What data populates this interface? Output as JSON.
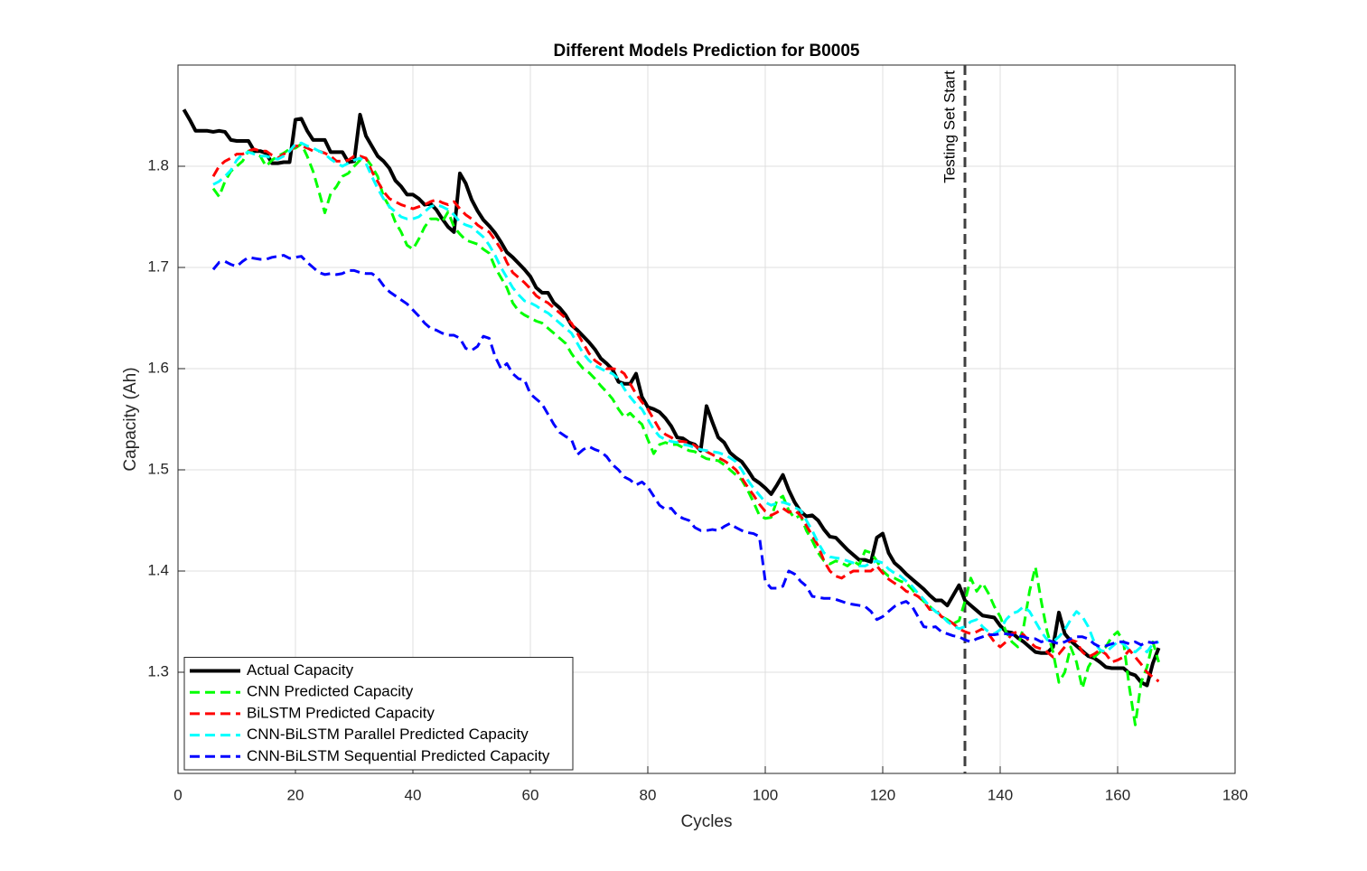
{
  "chart_data": {
    "type": "line",
    "title": "Different Models Prediction for B0005",
    "x_label": "Cycles",
    "y_label": "Capacity (Ah)",
    "xlim": [
      0,
      180
    ],
    "xticks": [
      0,
      20,
      40,
      60,
      80,
      100,
      120,
      140,
      160,
      180
    ],
    "ylim": [
      1.2,
      1.9
    ],
    "yticks": [
      1.3,
      1.4,
      1.5,
      1.6,
      1.7,
      1.8
    ],
    "grid": true,
    "legend": "lower left",
    "annotations": [
      {
        "x": 134,
        "text": "Testing Set Start",
        "color": "#404040",
        "line_style": "dashed"
      }
    ],
    "x": [
      1,
      2,
      3,
      4,
      5,
      6,
      7,
      8,
      9,
      10,
      11,
      12,
      13,
      14,
      15,
      16,
      17,
      18,
      19,
      20,
      21,
      22,
      23,
      24,
      25,
      26,
      27,
      28,
      29,
      30,
      31,
      32,
      33,
      34,
      35,
      36,
      37,
      38,
      39,
      40,
      41,
      42,
      43,
      44,
      45,
      46,
      47,
      48,
      49,
      50,
      51,
      52,
      53,
      54,
      55,
      56,
      57,
      58,
      59,
      60,
      61,
      62,
      63,
      64,
      65,
      66,
      67,
      68,
      69,
      70,
      71,
      72,
      73,
      74,
      75,
      76,
      77,
      78,
      79,
      80,
      81,
      82,
      83,
      84,
      85,
      86,
      87,
      88,
      89,
      90,
      91,
      92,
      93,
      94,
      95,
      96,
      97,
      98,
      99,
      100,
      101,
      102,
      103,
      104,
      105,
      106,
      107,
      108,
      109,
      110,
      111,
      112,
      113,
      114,
      115,
      116,
      117,
      118,
      119,
      120,
      121,
      122,
      123,
      124,
      125,
      126,
      127,
      128,
      129,
      130,
      131,
      132,
      133,
      134,
      135,
      136,
      137,
      138,
      139,
      140,
      141,
      142,
      143,
      144,
      145,
      146,
      147,
      148,
      149,
      150,
      151,
      152,
      153,
      154,
      155,
      156,
      157,
      158,
      159,
      160,
      161,
      162,
      163,
      164,
      165,
      166,
      167
    ],
    "series": [
      {
        "name": "Actual Capacity",
        "color": "#000000",
        "line_style": "solid",
        "values": [
          1.856,
          1.846,
          1.835,
          1.835,
          1.835,
          1.834,
          1.835,
          1.834,
          1.826,
          1.825,
          1.825,
          1.825,
          1.815,
          1.815,
          1.813,
          1.803,
          1.803,
          1.804,
          1.804,
          1.846,
          1.847,
          1.835,
          1.826,
          1.826,
          1.826,
          1.814,
          1.814,
          1.814,
          1.804,
          1.805,
          1.851,
          1.83,
          1.82,
          1.81,
          1.805,
          1.798,
          1.786,
          1.78,
          1.772,
          1.772,
          1.768,
          1.762,
          1.763,
          1.757,
          1.748,
          1.74,
          1.735,
          1.793,
          1.783,
          1.767,
          1.756,
          1.747,
          1.741,
          1.734,
          1.725,
          1.715,
          1.71,
          1.704,
          1.698,
          1.691,
          1.68,
          1.675,
          1.675,
          1.665,
          1.66,
          1.653,
          1.643,
          1.638,
          1.632,
          1.626,
          1.619,
          1.61,
          1.605,
          1.599,
          1.587,
          1.585,
          1.585,
          1.595,
          1.572,
          1.562,
          1.56,
          1.557,
          1.551,
          1.543,
          1.532,
          1.531,
          1.527,
          1.525,
          1.519,
          1.563,
          1.547,
          1.532,
          1.527,
          1.517,
          1.512,
          1.508,
          1.5,
          1.491,
          1.487,
          1.482,
          1.476,
          1.485,
          1.495,
          1.48,
          1.468,
          1.459,
          1.454,
          1.455,
          1.45,
          1.441,
          1.434,
          1.433,
          1.427,
          1.421,
          1.416,
          1.411,
          1.411,
          1.409,
          1.433,
          1.437,
          1.418,
          1.408,
          1.403,
          1.397,
          1.392,
          1.387,
          1.382,
          1.376,
          1.371,
          1.371,
          1.366,
          1.376,
          1.386,
          1.371,
          1.366,
          1.361,
          1.356,
          1.355,
          1.354,
          1.346,
          1.34,
          1.339,
          1.334,
          1.33,
          1.325,
          1.32,
          1.319,
          1.319,
          1.325,
          1.359,
          1.338,
          1.331,
          1.326,
          1.321,
          1.316,
          1.314,
          1.31,
          1.305,
          1.304,
          1.304,
          1.304,
          1.299,
          1.297,
          1.29,
          1.287,
          1.309,
          1.324
        ]
      },
      {
        "name": "CNN Predicted Capacity",
        "color": "#00ff00",
        "line_style": "dashed",
        "values": [
          null,
          null,
          null,
          null,
          null,
          1.778,
          1.77,
          1.785,
          1.795,
          1.8,
          1.805,
          1.815,
          1.812,
          1.81,
          1.8,
          1.806,
          1.81,
          1.813,
          1.817,
          1.818,
          1.822,
          1.81,
          1.795,
          1.775,
          1.754,
          1.773,
          1.78,
          1.79,
          1.793,
          1.8,
          1.806,
          1.808,
          1.8,
          1.79,
          1.77,
          1.76,
          1.745,
          1.735,
          1.722,
          1.718,
          1.728,
          1.74,
          1.748,
          1.748,
          1.745,
          1.755,
          1.74,
          1.733,
          1.727,
          1.725,
          1.723,
          1.718,
          1.714,
          1.7,
          1.69,
          1.68,
          1.665,
          1.657,
          1.653,
          1.65,
          1.647,
          1.645,
          1.64,
          1.635,
          1.63,
          1.625,
          1.615,
          1.607,
          1.6,
          1.596,
          1.59,
          1.583,
          1.577,
          1.57,
          1.56,
          1.552,
          1.556,
          1.55,
          1.545,
          1.53,
          1.516,
          1.525,
          1.527,
          1.525,
          1.525,
          1.522,
          1.519,
          1.518,
          1.514,
          1.511,
          1.51,
          1.509,
          1.505,
          1.5,
          1.495,
          1.49,
          1.48,
          1.468,
          1.455,
          1.452,
          1.453,
          1.47,
          1.474,
          1.46,
          1.452,
          1.455,
          1.44,
          1.43,
          1.418,
          1.41,
          1.407,
          1.41,
          1.408,
          1.405,
          1.41,
          1.406,
          1.42,
          1.418,
          1.41,
          1.4,
          1.395,
          1.393,
          1.39,
          1.388,
          1.382,
          1.375,
          1.37,
          1.365,
          1.36,
          1.355,
          1.352,
          1.348,
          1.351,
          1.37,
          1.393,
          1.38,
          1.388,
          1.378,
          1.365,
          1.355,
          1.34,
          1.33,
          1.325,
          1.345,
          1.38,
          1.404,
          1.37,
          1.34,
          1.32,
          1.29,
          1.3,
          1.325,
          1.31,
          1.284,
          1.305,
          1.315,
          1.32,
          1.325,
          1.335,
          1.34,
          1.33,
          1.285,
          1.248,
          1.29,
          1.305,
          1.33,
          1.31
        ]
      },
      {
        "name": "BiLSTM Predicted Capacity",
        "color": "#ff0000",
        "line_style": "dashed",
        "values": [
          null,
          null,
          null,
          null,
          null,
          1.79,
          1.8,
          1.805,
          1.808,
          1.812,
          1.812,
          1.815,
          1.817,
          1.815,
          1.815,
          1.811,
          1.808,
          1.812,
          1.815,
          1.82,
          1.82,
          1.818,
          1.815,
          1.815,
          1.813,
          1.81,
          1.805,
          1.805,
          1.806,
          1.81,
          1.81,
          1.808,
          1.795,
          1.785,
          1.775,
          1.768,
          1.765,
          1.762,
          1.76,
          1.758,
          1.76,
          1.762,
          1.765,
          1.767,
          1.764,
          1.762,
          1.765,
          1.758,
          1.752,
          1.748,
          1.742,
          1.738,
          1.735,
          1.727,
          1.718,
          1.705,
          1.695,
          1.69,
          1.685,
          1.679,
          1.672,
          1.668,
          1.665,
          1.66,
          1.655,
          1.65,
          1.645,
          1.635,
          1.625,
          1.615,
          1.608,
          1.604,
          1.6,
          1.6,
          1.599,
          1.595,
          1.585,
          1.575,
          1.567,
          1.56,
          1.55,
          1.54,
          1.535,
          1.532,
          1.528,
          1.528,
          1.527,
          1.524,
          1.52,
          1.518,
          1.515,
          1.512,
          1.509,
          1.505,
          1.5,
          1.492,
          1.483,
          1.475,
          1.466,
          1.459,
          1.455,
          1.458,
          1.462,
          1.458,
          1.46,
          1.455,
          1.445,
          1.435,
          1.425,
          1.41,
          1.4,
          1.395,
          1.393,
          1.397,
          1.4,
          1.4,
          1.4,
          1.4,
          1.405,
          1.398,
          1.392,
          1.388,
          1.385,
          1.38,
          1.378,
          1.375,
          1.37,
          1.362,
          1.362,
          1.355,
          1.352,
          1.348,
          1.343,
          1.34,
          1.338,
          1.34,
          1.343,
          1.338,
          1.33,
          1.325,
          1.33,
          1.338,
          1.34,
          1.337,
          1.33,
          1.325,
          1.323,
          1.32,
          1.315,
          1.318,
          1.325,
          1.332,
          1.33,
          1.32,
          1.315,
          1.318,
          1.322,
          1.318,
          1.31,
          1.312,
          1.315,
          1.322,
          1.315,
          1.308,
          1.3,
          1.295,
          1.291
        ]
      },
      {
        "name": "CNN-BiLSTM Parallel Predicted Capacity",
        "color": "#00ffff",
        "line_style": "dashed",
        "values": [
          null,
          null,
          null,
          null,
          null,
          1.782,
          1.785,
          1.79,
          1.796,
          1.806,
          1.812,
          1.814,
          1.812,
          1.81,
          1.81,
          1.808,
          1.807,
          1.81,
          1.815,
          1.822,
          1.823,
          1.82,
          1.818,
          1.815,
          1.812,
          1.807,
          1.803,
          1.8,
          1.803,
          1.806,
          1.808,
          1.803,
          1.79,
          1.778,
          1.768,
          1.76,
          1.755,
          1.75,
          1.748,
          1.748,
          1.75,
          1.755,
          1.76,
          1.762,
          1.76,
          1.757,
          1.752,
          1.745,
          1.742,
          1.74,
          1.735,
          1.73,
          1.722,
          1.712,
          1.7,
          1.69,
          1.68,
          1.673,
          1.667,
          1.665,
          1.662,
          1.658,
          1.655,
          1.65,
          1.645,
          1.64,
          1.635,
          1.625,
          1.615,
          1.608,
          1.603,
          1.6,
          1.597,
          1.595,
          1.59,
          1.58,
          1.572,
          1.565,
          1.56,
          1.55,
          1.54,
          1.533,
          1.53,
          1.528,
          1.527,
          1.525,
          1.524,
          1.522,
          1.52,
          1.519,
          1.518,
          1.517,
          1.515,
          1.512,
          1.508,
          1.5,
          1.49,
          1.482,
          1.475,
          1.468,
          1.465,
          1.467,
          1.468,
          1.466,
          1.463,
          1.46,
          1.45,
          1.44,
          1.428,
          1.418,
          1.414,
          1.413,
          1.412,
          1.41,
          1.408,
          1.405,
          1.405,
          1.408,
          1.41,
          1.408,
          1.402,
          1.398,
          1.395,
          1.39,
          1.385,
          1.378,
          1.372,
          1.365,
          1.36,
          1.356,
          1.35,
          1.346,
          1.343,
          1.345,
          1.35,
          1.352,
          1.345,
          1.34,
          1.338,
          1.342,
          1.352,
          1.358,
          1.36,
          1.365,
          1.36,
          1.35,
          1.34,
          1.332,
          1.33,
          1.335,
          1.342,
          1.352,
          1.36,
          1.355,
          1.345,
          1.33,
          1.322,
          1.32,
          1.325,
          1.33,
          1.328,
          1.322,
          1.32,
          1.325,
          1.32,
          1.328,
          1.33
        ]
      },
      {
        "name": "CNN-BiLSTM Sequential Predicted Capacity",
        "color": "#0000ff",
        "line_style": "dashed",
        "values": [
          null,
          null,
          null,
          null,
          null,
          1.698,
          1.705,
          1.706,
          1.703,
          1.701,
          1.706,
          1.71,
          1.709,
          1.708,
          1.708,
          1.71,
          1.711,
          1.712,
          1.709,
          1.71,
          1.711,
          1.705,
          1.7,
          1.695,
          1.693,
          1.694,
          1.693,
          1.694,
          1.697,
          1.697,
          1.695,
          1.694,
          1.694,
          1.69,
          1.682,
          1.676,
          1.672,
          1.668,
          1.664,
          1.658,
          1.652,
          1.645,
          1.64,
          1.638,
          1.635,
          1.633,
          1.633,
          1.63,
          1.62,
          1.618,
          1.622,
          1.632,
          1.63,
          1.612,
          1.6,
          1.605,
          1.595,
          1.59,
          1.589,
          1.575,
          1.57,
          1.565,
          1.555,
          1.545,
          1.537,
          1.533,
          1.53,
          1.515,
          1.52,
          1.523,
          1.52,
          1.518,
          1.513,
          1.505,
          1.5,
          1.493,
          1.49,
          1.485,
          1.488,
          1.483,
          1.474,
          1.465,
          1.461,
          1.462,
          1.455,
          1.452,
          1.45,
          1.443,
          1.44,
          1.44,
          1.441,
          1.44,
          1.444,
          1.447,
          1.443,
          1.44,
          1.438,
          1.437,
          1.434,
          1.39,
          1.383,
          1.383,
          1.385,
          1.4,
          1.397,
          1.39,
          1.385,
          1.375,
          1.374,
          1.373,
          1.373,
          1.372,
          1.37,
          1.368,
          1.367,
          1.366,
          1.365,
          1.36,
          1.352,
          1.355,
          1.36,
          1.365,
          1.368,
          1.37,
          1.365,
          1.355,
          1.345,
          1.344,
          1.345,
          1.34,
          1.338,
          1.336,
          1.335,
          1.332,
          1.33,
          1.333,
          1.335,
          1.337,
          1.337,
          1.338,
          1.338,
          1.337,
          1.336,
          1.335,
          1.333,
          1.333,
          1.33,
          1.332,
          1.33,
          1.328,
          1.33,
          1.333,
          1.335,
          1.335,
          1.333,
          1.328,
          1.325,
          1.326,
          1.328,
          1.33,
          1.33,
          1.328,
          1.33,
          1.327,
          1.33,
          1.329,
          1.33
        ]
      }
    ]
  }
}
